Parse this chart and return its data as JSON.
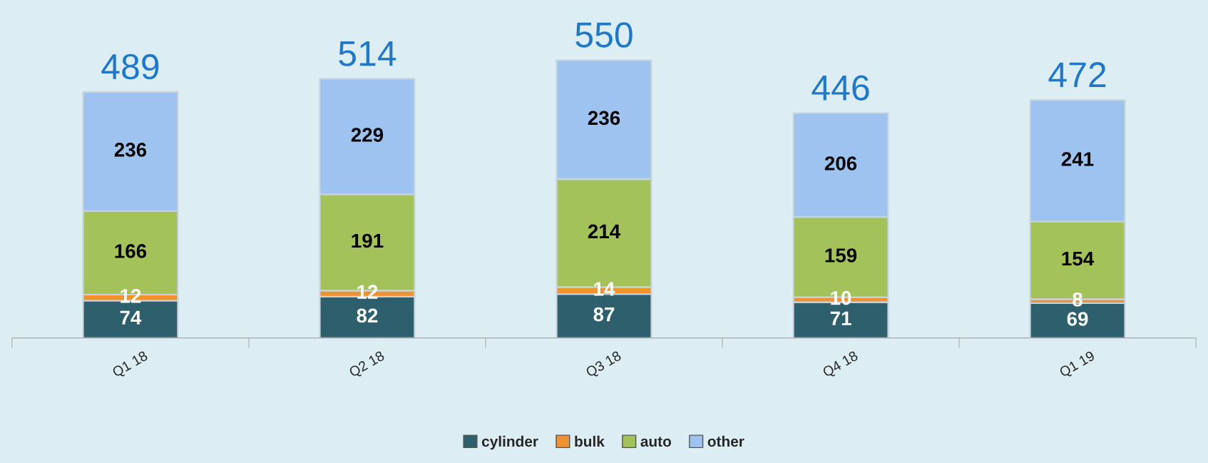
{
  "chart_data": {
    "type": "bar",
    "stacked": true,
    "data_labels": true,
    "legend": "bottom",
    "grid": false,
    "categories": [
      "Q1 18",
      "Q2 18",
      "Q3 18",
      "Q4 18",
      "Q1 19"
    ],
    "series": [
      {
        "name": "cylinder",
        "color": "#2d5f6c",
        "values": [
          74,
          82,
          87,
          71,
          69
        ]
      },
      {
        "name": "bulk",
        "color": "#f0922f",
        "values": [
          12,
          12,
          14,
          10,
          8
        ]
      },
      {
        "name": "auto",
        "color": "#a4c25a",
        "values": [
          166,
          191,
          214,
          159,
          154
        ]
      },
      {
        "name": "other",
        "color": "#9dc3f0",
        "values": [
          236,
          229,
          236,
          206,
          241
        ]
      }
    ],
    "totals": [
      "489",
      "514",
      "550",
      "446",
      "472"
    ]
  }
}
